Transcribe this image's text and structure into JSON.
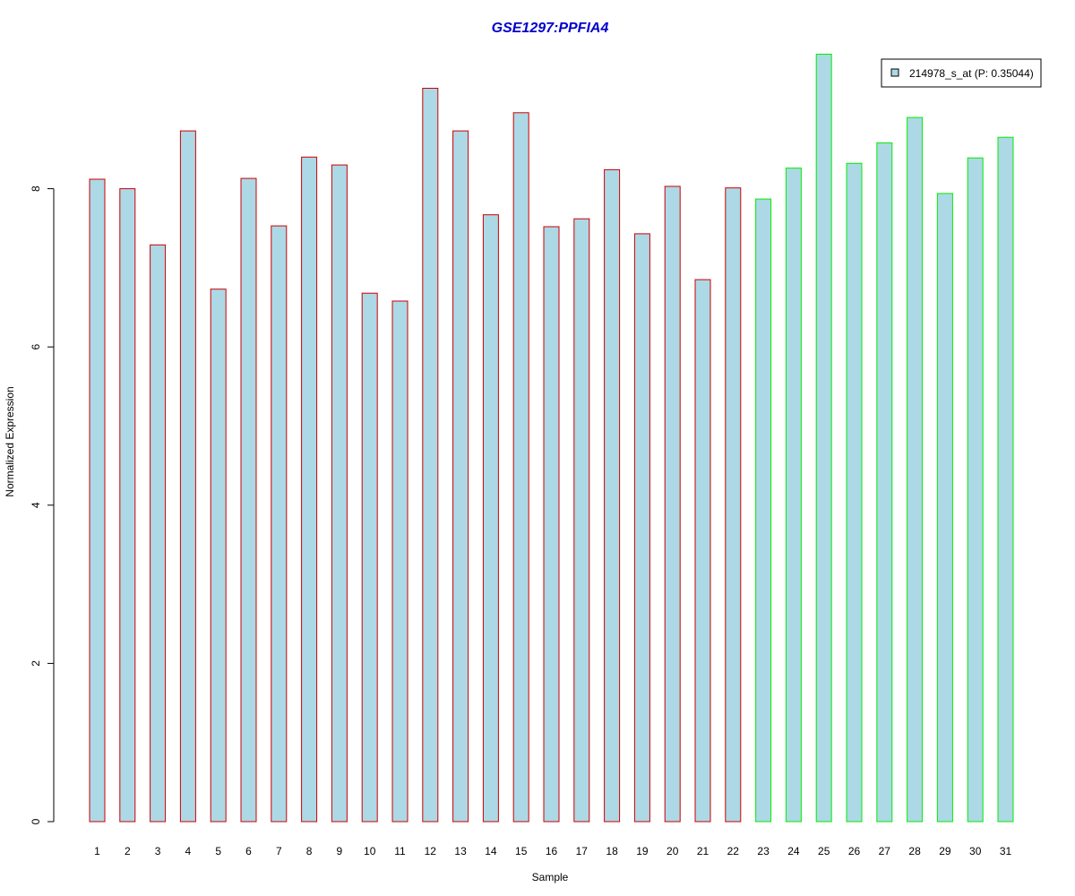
{
  "chart_data": {
    "type": "bar",
    "title": "GSE1297:PPFIA4",
    "xlabel": "Sample",
    "ylabel": "Normalized Expression",
    "categories": [
      "1",
      "2",
      "3",
      "4",
      "5",
      "6",
      "7",
      "8",
      "9",
      "10",
      "11",
      "12",
      "13",
      "14",
      "15",
      "16",
      "17",
      "18",
      "19",
      "20",
      "21",
      "22",
      "23",
      "24",
      "25",
      "26",
      "27",
      "28",
      "29",
      "30",
      "31"
    ],
    "series": [
      {
        "name": "214978_s_at (P: 0.35044)",
        "values": [
          8.12,
          8.0,
          7.29,
          8.73,
          6.73,
          8.13,
          7.53,
          8.4,
          8.3,
          6.68,
          6.58,
          9.27,
          8.73,
          7.67,
          8.96,
          7.52,
          7.62,
          8.24,
          7.43,
          8.03,
          6.85,
          8.01,
          7.87,
          8.26,
          9.7,
          8.32,
          8.58,
          8.9,
          7.94,
          8.39,
          8.65
        ]
      }
    ],
    "group_border_colors": [
      "#cc0000",
      "#cc0000",
      "#cc0000",
      "#cc0000",
      "#cc0000",
      "#cc0000",
      "#cc0000",
      "#cc0000",
      "#cc0000",
      "#cc0000",
      "#cc0000",
      "#cc0000",
      "#cc0000",
      "#cc0000",
      "#cc0000",
      "#cc0000",
      "#cc0000",
      "#cc0000",
      "#cc0000",
      "#cc0000",
      "#cc0000",
      "#cc0000",
      "#00ee00",
      "#00ee00",
      "#00ee00",
      "#00ee00",
      "#00ee00",
      "#00ee00",
      "#00ee00",
      "#00ee00",
      "#00ee00"
    ],
    "bar_fill": "#add8e6",
    "yticks": [
      0,
      2,
      4,
      6,
      8
    ],
    "ylim": [
      0,
      9.7
    ],
    "grid": false,
    "legend_position": "top-right"
  }
}
